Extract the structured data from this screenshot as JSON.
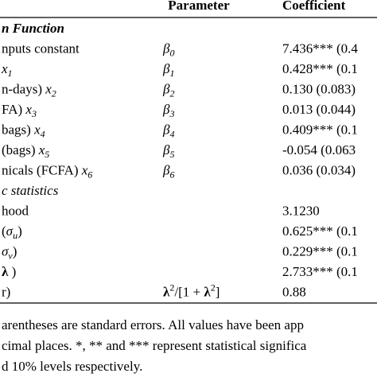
{
  "header": {
    "parameter": "Parameter",
    "coefficient": "Coefficient"
  },
  "sections": [
    {
      "title": "n Function",
      "rows": [
        {
          "label": [
            "nputs constant"
          ],
          "param": [
            {
              "italic": "β",
              "sub": "0"
            }
          ],
          "coef": "7.436*** (0.4"
        },
        {
          "label": [
            {
              "italic": "x",
              "sub": "1"
            }
          ],
          "param": [
            {
              "italic": "β",
              "sub": "1"
            }
          ],
          "coef": "0.428*** (0.1"
        },
        {
          "label": [
            "n-days) ",
            {
              "italic": "x",
              "sub": "2"
            }
          ],
          "param": [
            {
              "italic": "β",
              "sub": "2"
            }
          ],
          "coef": "0.130 (0.083)"
        },
        {
          "label": [
            "FA) ",
            {
              "italic": "x",
              "sub": "3"
            }
          ],
          "param": [
            {
              "italic": "β",
              "sub": "3"
            }
          ],
          "coef": "0.013 (0.044)"
        },
        {
          "label": [
            "bags) ",
            {
              "italic": "x",
              "sub": "4"
            }
          ],
          "param": [
            {
              "italic": "β",
              "sub": "4"
            }
          ],
          "coef": "0.409*** (0.1"
        },
        {
          "label": [
            "(bags) ",
            {
              "italic": "x",
              "sub": "5"
            }
          ],
          "param": [
            {
              "italic": "β",
              "sub": "5"
            }
          ],
          "coef": "-0.054 (0.063"
        },
        {
          "label": [
            "nicals (FCFA) ",
            {
              "italic": "x",
              "sub": "6"
            }
          ],
          "param": [
            {
              "italic": "β",
              "sub": "6"
            }
          ],
          "coef": "0.036 (0.034)"
        }
      ]
    },
    {
      "title": "c statistics",
      "rows": [
        {
          "label": [
            "hood"
          ],
          "coef": "3.1230"
        },
        {
          "label": [
            "(",
            {
              "italic": "σ",
              "sub": "u"
            },
            ")"
          ],
          "coef": "0.625*** (0.1"
        },
        {
          "label": [
            {
              "italic": "σ",
              "sub": "v"
            },
            ")"
          ],
          "coef": "0.229*** (0.1"
        },
        {
          "label": [
            {
              "bold": "λ"
            },
            " )"
          ],
          "coef": "2.733*** (0.1"
        },
        {
          "label": [
            "r)"
          ],
          "param": [
            {
              "bold": "λ"
            },
            {
              "sup": "2"
            },
            "/[1 + ",
            {
              "bold": "λ"
            },
            {
              "sup": "2"
            },
            "]"
          ],
          "coef": "0.88"
        }
      ]
    }
  ],
  "footnote": [
    "arentheses are standard errors. All values have been app",
    "cimal places. *, ** and *** represent statistical significa",
    "d 10% levels respectively."
  ]
}
